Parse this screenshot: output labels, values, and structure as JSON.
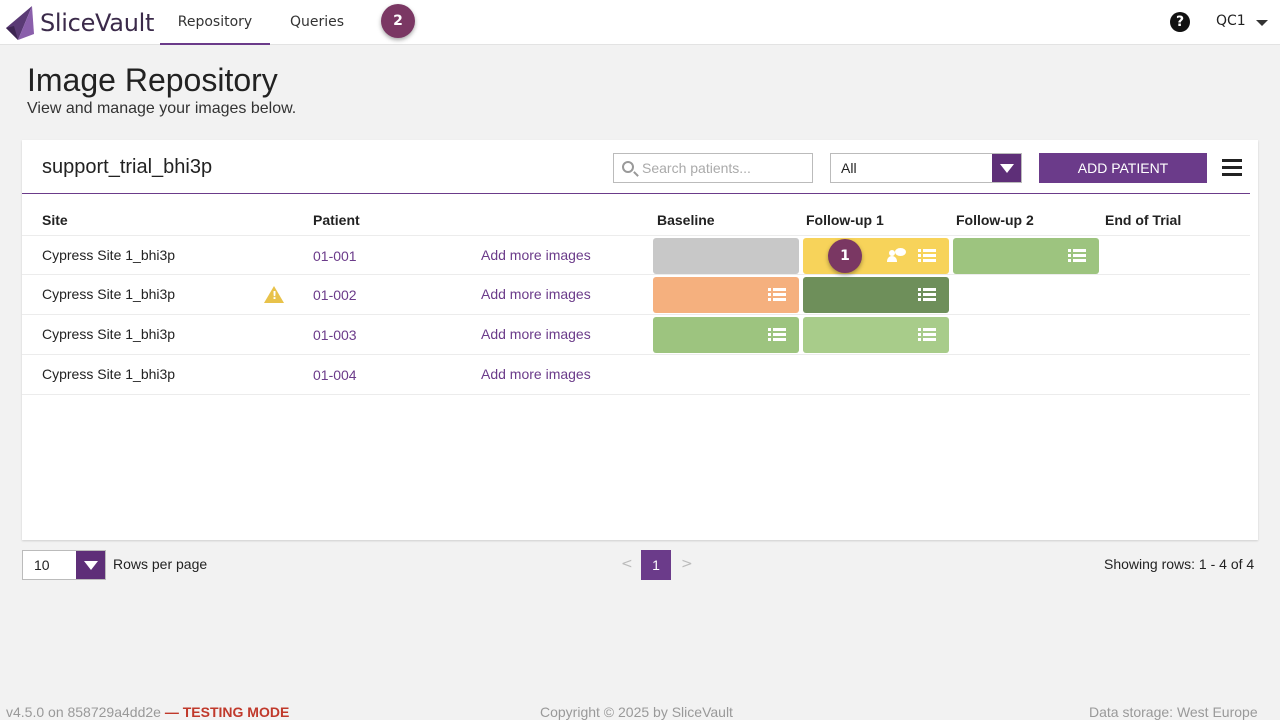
{
  "app": {
    "brand": "SliceVault"
  },
  "nav": {
    "tabs": [
      {
        "label": "Repository"
      },
      {
        "label": "Queries"
      }
    ],
    "queries_badge": "2",
    "user": "QC1"
  },
  "page": {
    "title": "Image Repository",
    "subtitle": "View and manage your images below."
  },
  "card": {
    "trial_name": "support_trial_bhi3p",
    "search_placeholder": "Search patients...",
    "filter_value": "All",
    "add_button": "ADD PATIENT"
  },
  "table": {
    "columns": [
      "Site",
      "Patient",
      "Baseline",
      "Follow-up 1",
      "Follow-up 2",
      "End of Trial"
    ],
    "add_more_label": "Add more images",
    "rows": [
      {
        "site": "Cypress Site 1_bhi3p",
        "patient": "01-001",
        "warning": false
      },
      {
        "site": "Cypress Site 1_bhi3p",
        "patient": "01-002",
        "warning": true
      },
      {
        "site": "Cypress Site 1_bhi3p",
        "patient": "01-003",
        "warning": false
      },
      {
        "site": "Cypress Site 1_bhi3p",
        "patient": "01-004",
        "warning": false
      }
    ],
    "visit_colors": {
      "grey": "#c8c8c8",
      "yellow": "#f7d35a",
      "light_green": "#9dc47f",
      "orange": "#f5b07e",
      "dark_green": "#6e8f5a"
    },
    "row1_followup1_badge": "1"
  },
  "pagination": {
    "rows_per_page_value": "10",
    "rows_per_page_label": "Rows per page",
    "prev": "<",
    "current": "1",
    "next": ">",
    "showing": "Showing rows: 1 - 4 of 4"
  },
  "footer": {
    "version": "v4.5.0 on 858729a4dd2e",
    "mode": "— TESTING MODE",
    "copyright": "Copyright © 2025 by SliceVault",
    "storage": "Data storage: West Europe"
  }
}
